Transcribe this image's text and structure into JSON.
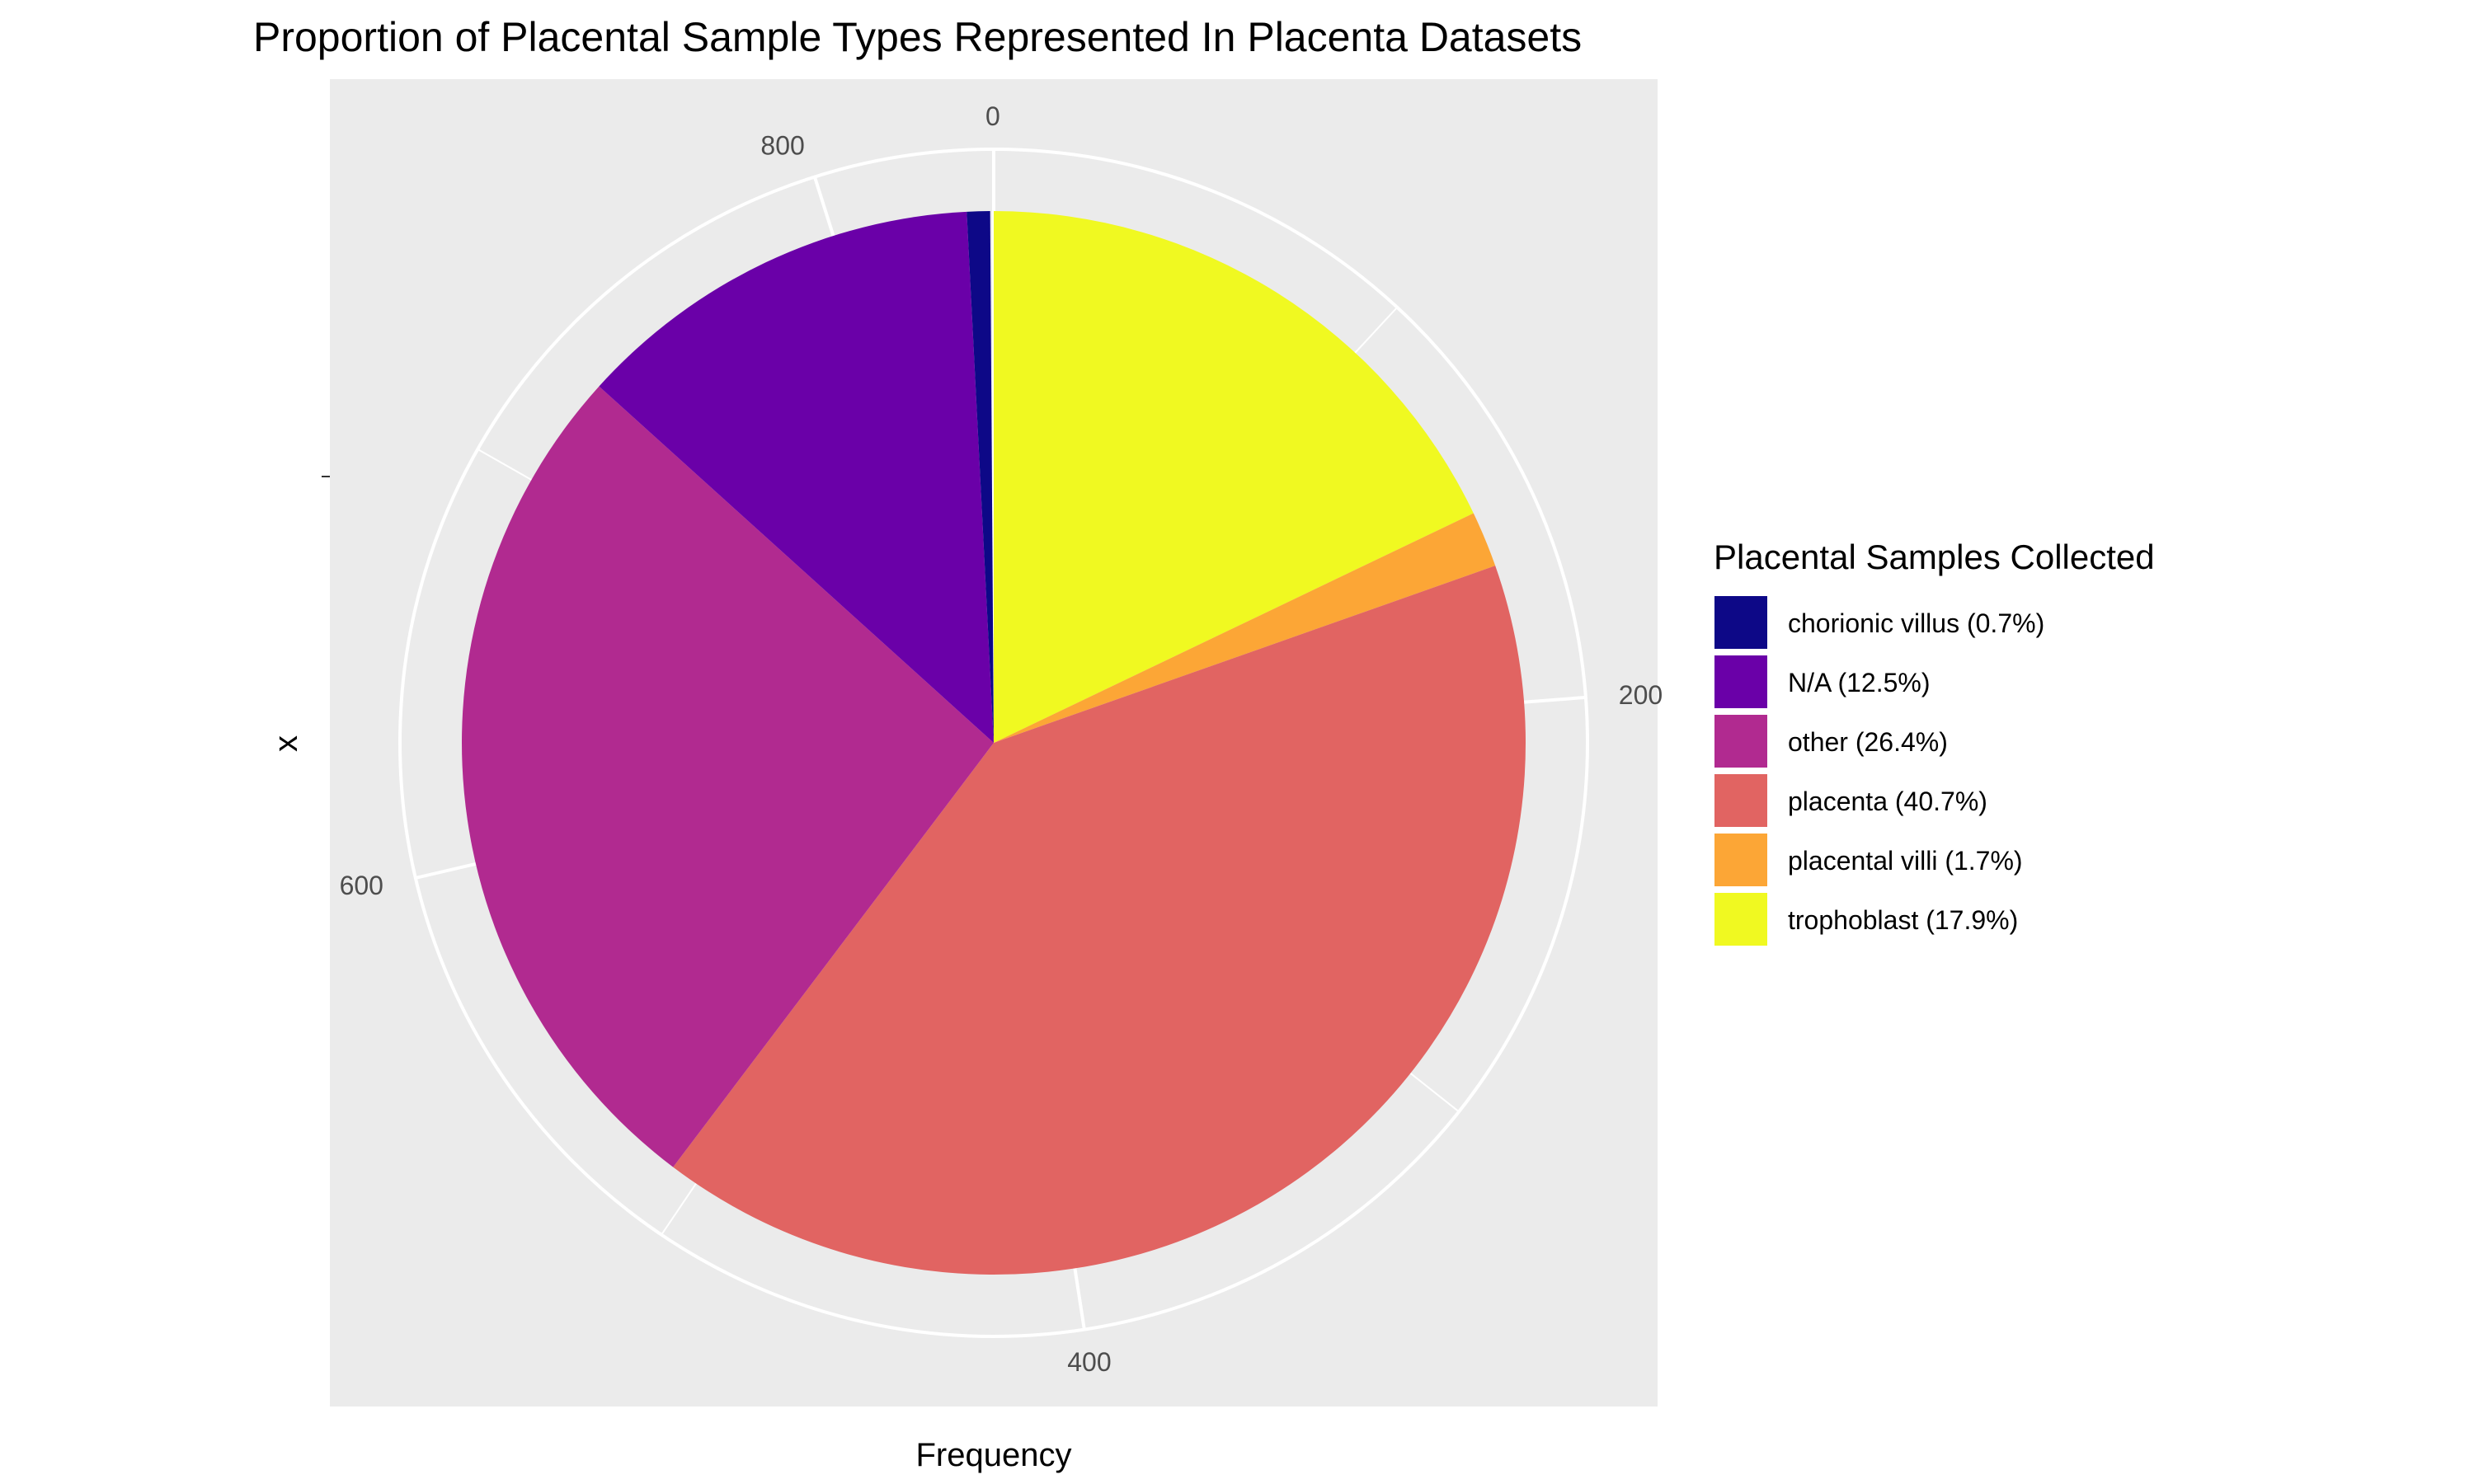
{
  "chart_data": {
    "type": "pie",
    "title": "Proportion of Placental Sample Types Represented In Placenta Datasets",
    "xlabel": "Frequency",
    "ylabel": "x",
    "theta_ticks": [
      "0",
      "200",
      "400",
      "600",
      "800"
    ],
    "theta_tick_values": [
      0,
      200,
      400,
      600,
      800
    ],
    "total": 841,
    "legend": {
      "title": "Placental Samples Collected",
      "position": "right"
    },
    "slices": [
      {
        "label": "trophoblast (17.9%)",
        "value": 150.5,
        "color": "#F0F921"
      },
      {
        "label": "placental villi (1.7%)",
        "value": 14.3,
        "color": "#FCA636"
      },
      {
        "label": "placenta (40.7%)",
        "value": 342.3,
        "color": "#E16462"
      },
      {
        "label": "other (26.4%)",
        "value": 222.0,
        "color": "#B12A90"
      },
      {
        "label": "N/A (12.5%)",
        "value": 105.1,
        "color": "#6A00A8"
      },
      {
        "label": "chorionic villus (0.7%)",
        "value": 5.9,
        "color": "#0D0887"
      }
    ],
    "legend_order": [
      "chorionic villus (0.7%)",
      "N/A (12.5%)",
      "other (26.4%)",
      "placenta (40.7%)",
      "placental villi (1.7%)",
      "trophoblast (17.9%)"
    ],
    "colors": {
      "panel_background": "#EBEBEB",
      "grid": "#FFFFFF"
    }
  }
}
